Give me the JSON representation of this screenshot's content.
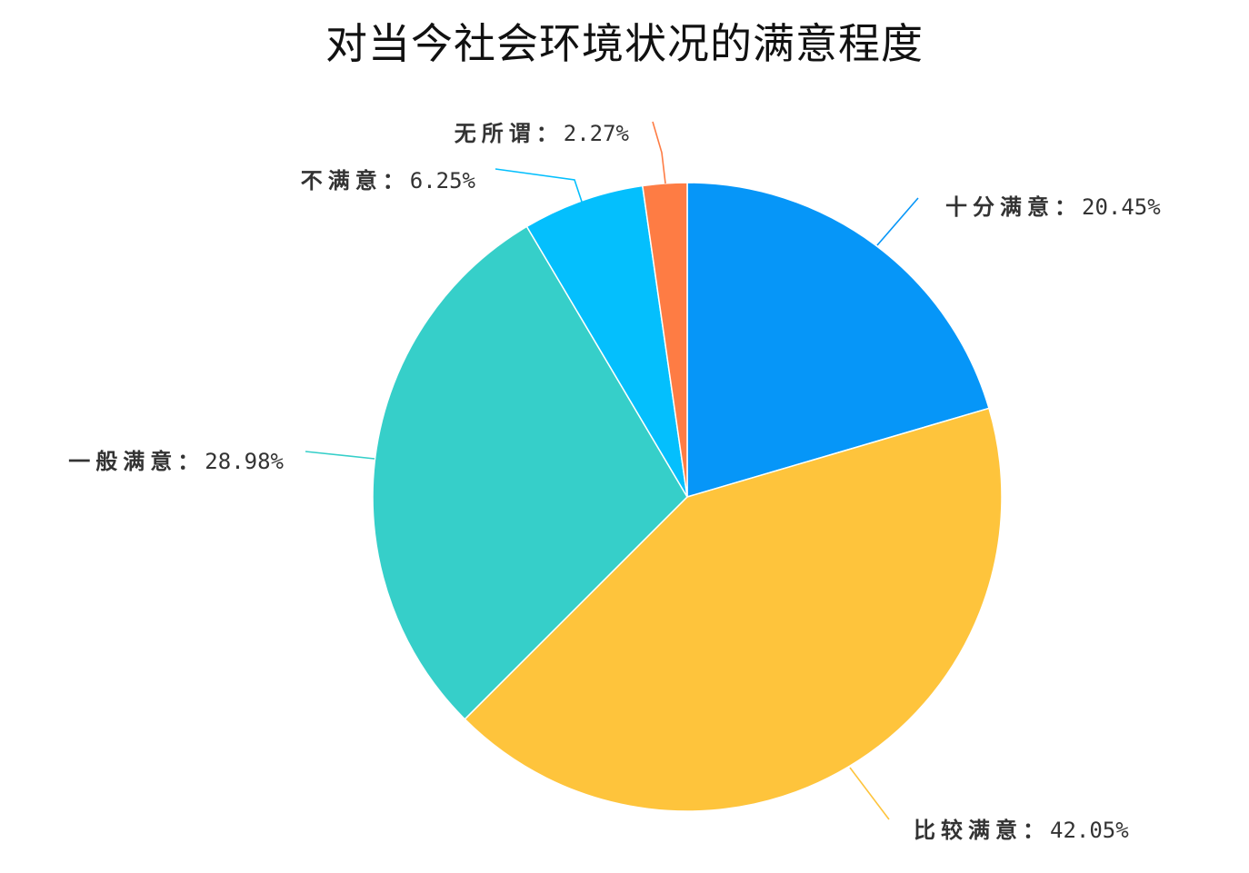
{
  "chart_data": {
    "type": "pie",
    "title": "对当今社会环境状况的满意程度",
    "start_angle_deg": -90,
    "direction": "clockwise",
    "slices": [
      {
        "label": "十分满意",
        "value": 20.45,
        "value_text": "20.45%",
        "color": "#0696f8"
      },
      {
        "label": "比较满意",
        "value": 42.05,
        "value_text": "42.05%",
        "color": "#fec43c"
      },
      {
        "label": "一般满意",
        "value": 28.98,
        "value_text": "28.98%",
        "color": "#36cfc9"
      },
      {
        "label": "不满意",
        "value": 6.25,
        "value_text": "6.25%",
        "color": "#04bffd"
      },
      {
        "label": "无所谓",
        "value": 2.27,
        "value_text": "2.27%",
        "color": "#fe7c44"
      }
    ],
    "label_separator": "："
  }
}
